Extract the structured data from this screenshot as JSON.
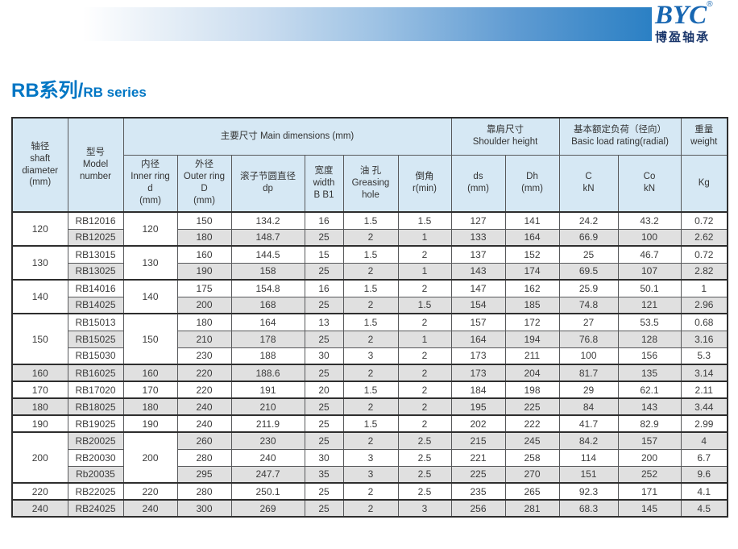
{
  "brand": {
    "logo_text": "BYC",
    "registered_mark": "®",
    "logo_subtext": "博盈轴承"
  },
  "page_title": {
    "zh": "RB系列/",
    "en": "RB series"
  },
  "colors": {
    "title_blue": "#0076c4",
    "logo_blue": "#1766b1",
    "logo_dark": "#1a366b",
    "header_bg": "#d6e8f4",
    "row_alt_bg": "#e0e0e0",
    "bar_blue": "#2b80c4"
  },
  "table": {
    "headers": {
      "shaft": "轴径\nshaft\ndiameter\n(mm)",
      "model": "型号\nModel\nnumber",
      "main_dimensions": "主要尺寸 Main dimensions (mm)",
      "shoulder": "靠肩尺寸\nShoulder height",
      "load_rating": "基本额定负荷（径向）\nBasic load rating(radial)",
      "weight": "重量\nweight",
      "inner": "内径\nInner ring\nd\n(mm)",
      "outer": "外径\nOuter ring\nD\n(mm)",
      "dp": "滚子节圆直径\ndp",
      "width": "宽度\nwidth\nB B1",
      "greasing": "油 孔\nGreasing\nhole",
      "chamfer": "倒角\nr(min)",
      "ds": "ds\n(mm)",
      "dh": "Dh\n(mm)",
      "c": "C\nkN",
      "co": "Co\nkN",
      "kg": "Kg"
    },
    "groups": [
      {
        "shaft": "120",
        "inner": "120",
        "rows": [
          {
            "model": "RB12016",
            "outer": "150",
            "dp": "134.2",
            "width": "16",
            "greasing": "1.5",
            "r": "1.5",
            "ds": "127",
            "dh": "141",
            "c": "24.2",
            "co": "43.2",
            "kg": "0.72"
          },
          {
            "model": "RB12025",
            "outer": "180",
            "dp": "148.7",
            "width": "25",
            "greasing": "2",
            "r": "1",
            "ds": "133",
            "dh": "164",
            "c": "66.9",
            "co": "100",
            "kg": "2.62"
          }
        ]
      },
      {
        "shaft": "130",
        "inner": "130",
        "rows": [
          {
            "model": "RB13015",
            "outer": "160",
            "dp": "144.5",
            "width": "15",
            "greasing": "1.5",
            "r": "2",
            "ds": "137",
            "dh": "152",
            "c": "25",
            "co": "46.7",
            "kg": "0.72"
          },
          {
            "model": "RB13025",
            "outer": "190",
            "dp": "158",
            "width": "25",
            "greasing": "2",
            "r": "1",
            "ds": "143",
            "dh": "174",
            "c": "69.5",
            "co": "107",
            "kg": "2.82"
          }
        ]
      },
      {
        "shaft": "140",
        "inner": "140",
        "rows": [
          {
            "model": "RB14016",
            "outer": "175",
            "dp": "154.8",
            "width": "16",
            "greasing": "1.5",
            "r": "2",
            "ds": "147",
            "dh": "162",
            "c": "25.9",
            "co": "50.1",
            "kg": "1"
          },
          {
            "model": "RB14025",
            "outer": "200",
            "dp": "168",
            "width": "25",
            "greasing": "2",
            "r": "1.5",
            "ds": "154",
            "dh": "185",
            "c": "74.8",
            "co": "121",
            "kg": "2.96"
          }
        ]
      },
      {
        "shaft": "150",
        "inner": "150",
        "rows": [
          {
            "model": "RB15013",
            "outer": "180",
            "dp": "164",
            "width": "13",
            "greasing": "1.5",
            "r": "2",
            "ds": "157",
            "dh": "172",
            "c": "27",
            "co": "53.5",
            "kg": "0.68"
          },
          {
            "model": "RB15025",
            "outer": "210",
            "dp": "178",
            "width": "25",
            "greasing": "2",
            "r": "1",
            "ds": "164",
            "dh": "194",
            "c": "76.8",
            "co": "128",
            "kg": "3.16"
          },
          {
            "model": "RB15030",
            "outer": "230",
            "dp": "188",
            "width": "30",
            "greasing": "3",
            "r": "2",
            "ds": "173",
            "dh": "211",
            "c": "100",
            "co": "156",
            "kg": "5.3"
          }
        ]
      },
      {
        "shaft": "160",
        "inner": "160",
        "rows": [
          {
            "model": "RB16025",
            "outer": "220",
            "dp": "188.6",
            "width": "25",
            "greasing": "2",
            "r": "2",
            "ds": "173",
            "dh": "204",
            "c": "81.7",
            "co": "135",
            "kg": "3.14"
          }
        ]
      },
      {
        "shaft": "170",
        "inner": "170",
        "rows": [
          {
            "model": "RB17020",
            "outer": "220",
            "dp": "191",
            "width": "20",
            "greasing": "1.5",
            "r": "2",
            "ds": "184",
            "dh": "198",
            "c": "29",
            "co": "62.1",
            "kg": "2.11"
          }
        ]
      },
      {
        "shaft": "180",
        "inner": "180",
        "rows": [
          {
            "model": "RB18025",
            "outer": "240",
            "dp": "210",
            "width": "25",
            "greasing": "2",
            "r": "2",
            "ds": "195",
            "dh": "225",
            "c": "84",
            "co": "143",
            "kg": "3.44"
          }
        ]
      },
      {
        "shaft": "190",
        "inner": "190",
        "rows": [
          {
            "model": "RB19025",
            "outer": "240",
            "dp": "211.9",
            "width": "25",
            "greasing": "1.5",
            "r": "2",
            "ds": "202",
            "dh": "222",
            "c": "41.7",
            "co": "82.9",
            "kg": "2.99"
          }
        ]
      },
      {
        "shaft": "200",
        "inner": "200",
        "rows": [
          {
            "model": "RB20025",
            "outer": "260",
            "dp": "230",
            "width": "25",
            "greasing": "2",
            "r": "2.5",
            "ds": "215",
            "dh": "245",
            "c": "84.2",
            "co": "157",
            "kg": "4"
          },
          {
            "model": "RB20030",
            "outer": "280",
            "dp": "240",
            "width": "30",
            "greasing": "3",
            "r": "2.5",
            "ds": "221",
            "dh": "258",
            "c": "114",
            "co": "200",
            "kg": "6.7"
          },
          {
            "model": "Rb20035",
            "outer": "295",
            "dp": "247.7",
            "width": "35",
            "greasing": "3",
            "r": "2.5",
            "ds": "225",
            "dh": "270",
            "c": "151",
            "co": "252",
            "kg": "9.6"
          }
        ]
      },
      {
        "shaft": "220",
        "inner": "220",
        "rows": [
          {
            "model": "RB22025",
            "outer": "280",
            "dp": "250.1",
            "width": "25",
            "greasing": "2",
            "r": "2.5",
            "ds": "235",
            "dh": "265",
            "c": "92.3",
            "co": "171",
            "kg": "4.1"
          }
        ]
      },
      {
        "shaft": "240",
        "inner": "240",
        "rows": [
          {
            "model": "RB24025",
            "outer": "300",
            "dp": "269",
            "width": "25",
            "greasing": "2",
            "r": "3",
            "ds": "256",
            "dh": "281",
            "c": "68.3",
            "co": "145",
            "kg": "4.5"
          }
        ]
      }
    ]
  }
}
